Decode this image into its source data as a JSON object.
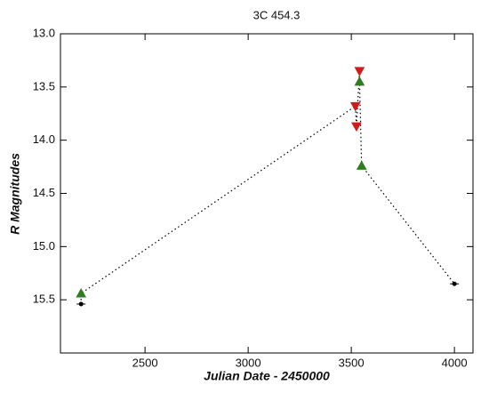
{
  "chart_data": {
    "type": "line",
    "title": "3C 454.3",
    "x_label": "Julian Date - 2450000",
    "y_label": "R Magnitudes",
    "x": [
      2190,
      2190,
      3520,
      3525,
      3540,
      3540,
      3550,
      4000
    ],
    "values": [
      15.54,
      15.44,
      13.68,
      13.87,
      13.35,
      13.45,
      14.24,
      15.35
    ],
    "markers": [
      "dash",
      "triangle-up",
      "triangle-down",
      "triangle-down",
      "triangle-down",
      "triangle-up",
      "triangle-up",
      "dash"
    ],
    "colors": [
      "#000000",
      "#2e7d1e",
      "#d11a1a",
      "#d11a1a",
      "#d11a1a",
      "#2e7d1e",
      "#2e7d1e",
      "#000000"
    ],
    "line_style": "dotted",
    "xlim": [
      2090,
      4090
    ],
    "ylim": [
      16.0,
      13.0
    ],
    "y_inverted": true,
    "xticks": [
      2500,
      3000,
      3500,
      4000
    ],
    "yticks": [
      {
        "value": 13,
        "label": "13.0"
      },
      {
        "value": 13.5,
        "label": "13.5"
      },
      {
        "value": 14,
        "label": "14.0"
      },
      {
        "value": 14.5,
        "label": "14.5"
      },
      {
        "value": 15,
        "label": "15.0"
      },
      {
        "value": 15.5,
        "label": "15.5"
      }
    ]
  }
}
